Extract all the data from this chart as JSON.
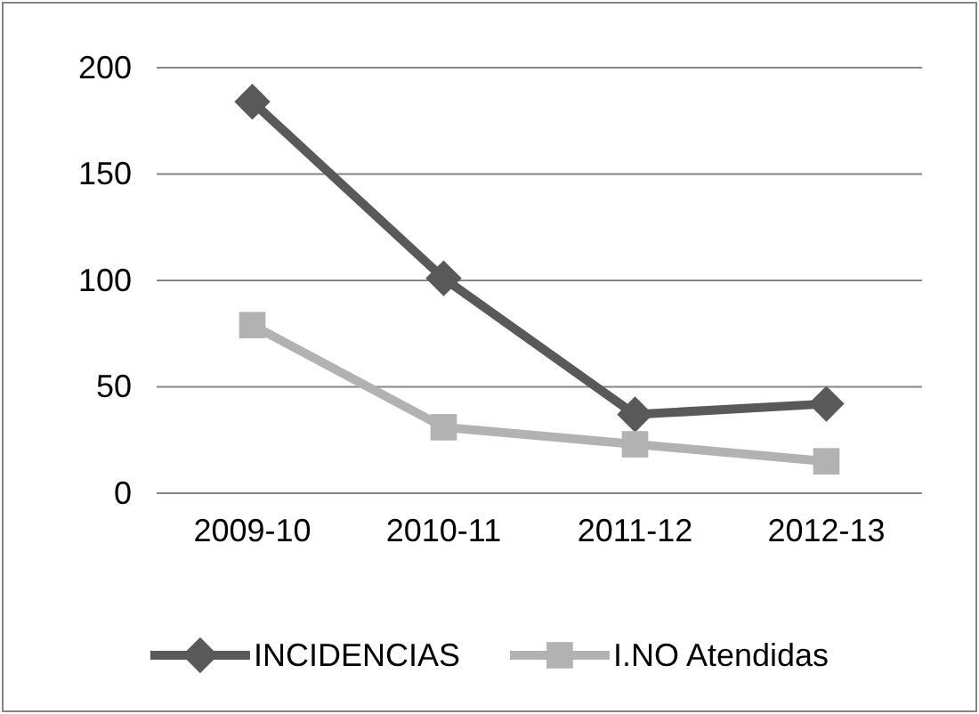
{
  "chart_data": {
    "type": "line",
    "categories": [
      "2009-10",
      "2010-11",
      "2011-12",
      "2012-13"
    ],
    "series": [
      {
        "name": "INCIDENCIAS",
        "color": "#595959",
        "marker": "diamond",
        "values": [
          184,
          101,
          37,
          42
        ]
      },
      {
        "name": "I.NO Atendidas",
        "color": "#b2b2b2",
        "marker": "square",
        "values": [
          79,
          31,
          23,
          15
        ]
      }
    ],
    "ylim": [
      0,
      200
    ],
    "yticks": [
      0,
      50,
      100,
      150,
      200
    ],
    "grid": "y",
    "legend": "bottom",
    "line_style": "solid"
  }
}
